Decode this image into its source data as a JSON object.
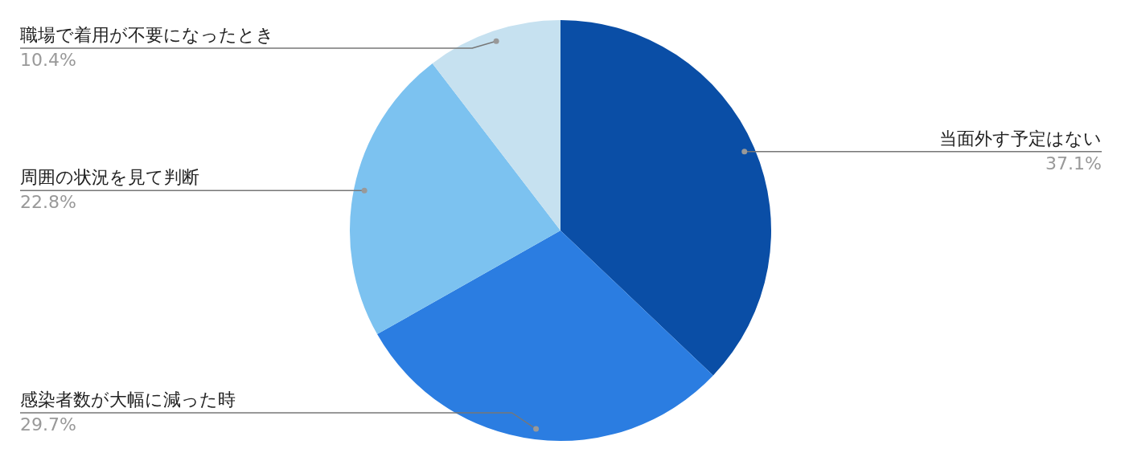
{
  "chart_data": {
    "type": "pie",
    "categories": [
      "当面外す予定はない",
      "感染者数が大幅に減った時",
      "周囲の状況を見て判断",
      "職場で着用が不要になったとき"
    ],
    "values": [
      37.1,
      29.7,
      22.8,
      10.4
    ],
    "value_labels": [
      "37.1%",
      "29.7%",
      "22.8%",
      "10.4%"
    ],
    "colors": [
      "#0a4ea6",
      "#2b7de1",
      "#7cc2f0",
      "#c6e1f0"
    ],
    "legend": false
  }
}
